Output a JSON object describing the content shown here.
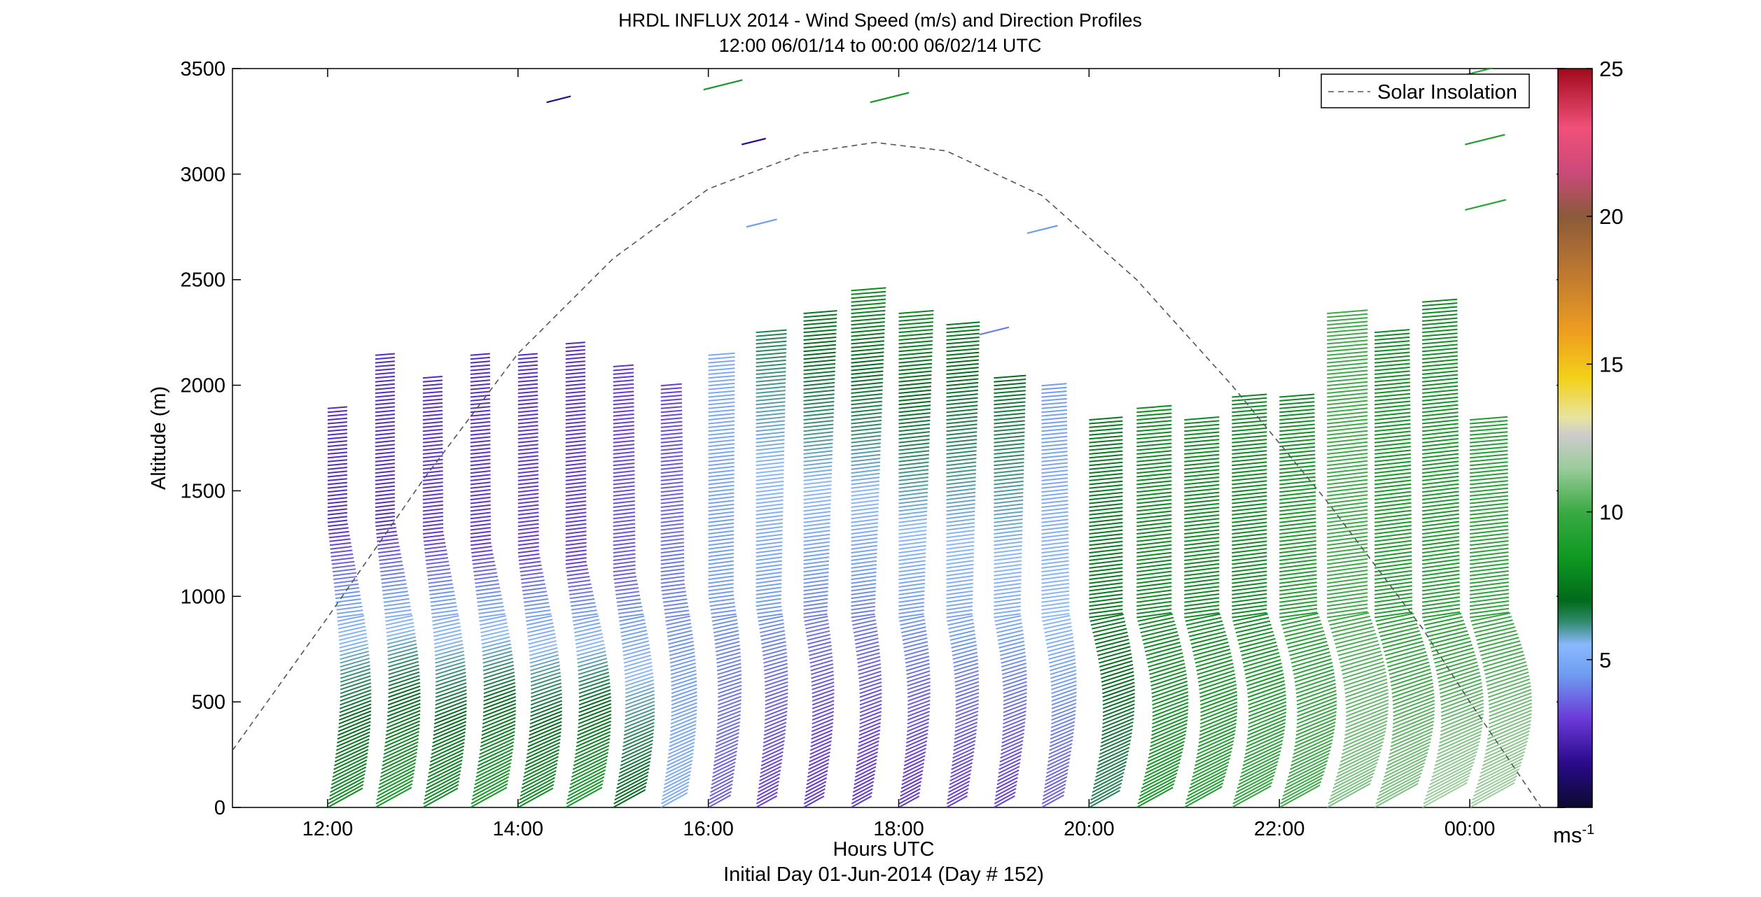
{
  "chart_data": {
    "type": "wind-profile barbs (line segments colored by speed)",
    "title": "HRDL INFLUX 2014 - Wind Speed (m/s) and Direction Profiles",
    "subtitle": "12:00 06/01/14 to 00:00 06/02/14  UTC",
    "xlabel": "Hours UTC",
    "xlabel2": "Initial Day 01-Jun-2014 (Day # 152)",
    "ylabel": "Altitude (m)",
    "xlim": [
      11.0,
      25.0
    ],
    "ylim": [
      0,
      3500
    ],
    "x_ticks": [
      12,
      14,
      16,
      18,
      20,
      22,
      24
    ],
    "x_tick_labels": [
      "12:00",
      "14:00",
      "16:00",
      "18:00",
      "20:00",
      "22:00",
      "00:00"
    ],
    "y_ticks": [
      0,
      500,
      1000,
      1500,
      2000,
      2500,
      3000,
      3500
    ],
    "y_tick_labels": [
      "0",
      "500",
      "1000",
      "1500",
      "2000",
      "2500",
      "3000",
      "3500"
    ],
    "legend": {
      "entries": [
        "Solar Insolation"
      ],
      "placement": "top-right",
      "line_style": "dashed",
      "color": "#555555"
    },
    "colorbar": {
      "range": [
        0,
        25
      ],
      "ticks": [
        5,
        10,
        15,
        20,
        25
      ],
      "tick_labels": [
        "5",
        "10",
        "15",
        "20",
        "25"
      ],
      "unit_label": "ms",
      "unit_exp": "-1",
      "stops": [
        {
          "v": 0.0,
          "c": "#0a0a30"
        },
        {
          "v": 1.5,
          "c": "#2a0a8a"
        },
        {
          "v": 3.0,
          "c": "#6a3ad8"
        },
        {
          "v": 4.5,
          "c": "#6f9df0"
        },
        {
          "v": 5.5,
          "c": "#8ab8ff"
        },
        {
          "v": 6.3,
          "c": "#2e8a6a"
        },
        {
          "v": 7.0,
          "c": "#006a1a"
        },
        {
          "v": 8.5,
          "c": "#109a22"
        },
        {
          "v": 10.0,
          "c": "#3aaa44"
        },
        {
          "v": 11.5,
          "c": "#9ccc9c"
        },
        {
          "v": 12.6,
          "c": "#cccccc"
        },
        {
          "v": 13.2,
          "c": "#e8e4a0"
        },
        {
          "v": 14.5,
          "c": "#f2d21a"
        },
        {
          "v": 16.0,
          "c": "#f0a020"
        },
        {
          "v": 18.0,
          "c": "#c07a30"
        },
        {
          "v": 20.0,
          "c": "#8a5a3a"
        },
        {
          "v": 21.5,
          "c": "#cc4a7a"
        },
        {
          "v": 23.0,
          "c": "#f0507a"
        },
        {
          "v": 25.0,
          "c": "#a00a1a"
        }
      ]
    },
    "solar_insolation": {
      "x": [
        11.0,
        12.0,
        13.0,
        14.0,
        15.0,
        16.0,
        17.0,
        17.75,
        18.5,
        19.5,
        20.5,
        21.5,
        22.5,
        23.5,
        24.0,
        24.75
      ],
      "y": [
        270,
        900,
        1550,
        2150,
        2600,
        2930,
        3100,
        3150,
        3110,
        2900,
        2500,
        2000,
        1450,
        850,
        500,
        0
      ]
    },
    "profiles": [
      {
        "t": 12.0,
        "top": 1900,
        "v_low": 8.0,
        "v_mid": 2.5,
        "v_top": 2.5,
        "jet": 1350
      },
      {
        "t": 12.5,
        "top": 2150,
        "v_low": 8.5,
        "v_mid": 2.5,
        "v_top": 2.5,
        "jet": 1350
      },
      {
        "t": 13.0,
        "top": 2050,
        "v_low": 8.0,
        "v_mid": 2.8,
        "v_top": 2.5,
        "jet": 1300
      },
      {
        "t": 13.5,
        "top": 2150,
        "v_low": 8.5,
        "v_mid": 2.8,
        "v_top": 2.5,
        "jet": 1250
      },
      {
        "t": 14.0,
        "top": 2150,
        "v_low": 8.0,
        "v_mid": 3.0,
        "v_top": 2.5,
        "jet": 1200
      },
      {
        "t": 14.5,
        "top": 2200,
        "v_low": 8.5,
        "v_mid": 3.0,
        "v_top": 2.5,
        "jet": 1150
      },
      {
        "t": 15.0,
        "top": 2100,
        "v_low": 7.0,
        "v_mid": 3.5,
        "v_top": 2.8,
        "jet": 1100
      },
      {
        "t": 15.5,
        "top": 2000,
        "v_low": 5.0,
        "v_mid": 4.0,
        "v_top": 3.0,
        "jet": 1050
      },
      {
        "t": 16.0,
        "top": 2150,
        "v_low": 3.5,
        "v_mid": 4.5,
        "v_top": 5.0,
        "jet": 1000
      },
      {
        "t": 16.5,
        "top": 2250,
        "v_low": 3.0,
        "v_mid": 4.5,
        "v_top": 6.5,
        "jet": 950
      },
      {
        "t": 17.0,
        "top": 2350,
        "v_low": 2.8,
        "v_mid": 4.0,
        "v_top": 7.5,
        "jet": 900
      },
      {
        "t": 17.5,
        "top": 2450,
        "v_low": 2.8,
        "v_mid": 4.0,
        "v_top": 8.0,
        "jet": 900
      },
      {
        "t": 18.0,
        "top": 2350,
        "v_low": 2.8,
        "v_mid": 4.5,
        "v_top": 8.0,
        "jet": 900
      },
      {
        "t": 18.5,
        "top": 2300,
        "v_low": 3.0,
        "v_mid": 4.8,
        "v_top": 7.5,
        "jet": 900
      },
      {
        "t": 19.0,
        "top": 2050,
        "v_low": 3.0,
        "v_mid": 5.0,
        "v_top": 7.0,
        "jet": 900
      },
      {
        "t": 19.5,
        "top": 2000,
        "v_low": 3.5,
        "v_mid": 5.5,
        "v_top": 4.5,
        "jet": 900
      },
      {
        "t": 20.0,
        "top": 1850,
        "v_low": 6.5,
        "v_mid": 7.5,
        "v_top": 7.5,
        "jet": 900
      },
      {
        "t": 20.5,
        "top": 1900,
        "v_low": 8.5,
        "v_mid": 8.0,
        "v_top": 8.0,
        "jet": 900
      },
      {
        "t": 21.0,
        "top": 1850,
        "v_low": 9.0,
        "v_mid": 8.0,
        "v_top": 8.0,
        "jet": 900
      },
      {
        "t": 21.5,
        "top": 1950,
        "v_low": 9.5,
        "v_mid": 8.0,
        "v_top": 8.0,
        "jet": 900
      },
      {
        "t": 22.0,
        "top": 1950,
        "v_low": 10.0,
        "v_mid": 9.0,
        "v_top": 8.0,
        "jet": 900
      },
      {
        "t": 22.5,
        "top": 2350,
        "v_low": 11.0,
        "v_mid": 10.0,
        "v_top": 10.0,
        "jet": 900
      },
      {
        "t": 23.0,
        "top": 2250,
        "v_low": 11.0,
        "v_mid": 9.0,
        "v_top": 8.0,
        "jet": 900
      },
      {
        "t": 23.5,
        "top": 2400,
        "v_low": 11.5,
        "v_mid": 9.0,
        "v_top": 8.0,
        "jet": 900
      },
      {
        "t": 24.0,
        "top": 1850,
        "v_low": 11.5,
        "v_mid": 9.5,
        "v_top": 9.0,
        "jet": 900
      }
    ],
    "isolated_segments": [
      {
        "t": 14.3,
        "alt": 3340,
        "v": 1.5
      },
      {
        "t": 15.95,
        "alt": 3400,
        "v": 8.5
      },
      {
        "t": 16.35,
        "alt": 3140,
        "v": 1.5
      },
      {
        "t": 16.4,
        "alt": 2750,
        "v": 4.5
      },
      {
        "t": 17.7,
        "alt": 3340,
        "v": 8.5
      },
      {
        "t": 19.35,
        "alt": 2720,
        "v": 4.5
      },
      {
        "t": 18.85,
        "alt": 2240,
        "v": 4.0
      },
      {
        "t": 23.95,
        "alt": 3470,
        "v": 9.5
      },
      {
        "t": 23.95,
        "alt": 3140,
        "v": 9.0
      },
      {
        "t": 23.95,
        "alt": 2830,
        "v": 9.5
      }
    ]
  }
}
